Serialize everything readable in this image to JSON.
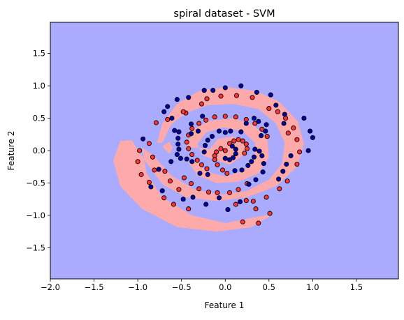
{
  "chart_data": {
    "type": "scatter",
    "title": "spiral dataset - SVM",
    "xlabel": "Feature 1",
    "ylabel": "Feature 2",
    "xlim": [
      -2.0,
      1.98
    ],
    "ylim": [
      -1.98,
      1.98
    ],
    "xticks": [
      -2.0,
      -1.5,
      -1.0,
      -0.5,
      0.0,
      0.5,
      1.0,
      1.5
    ],
    "xtick_labels": [
      "−2.0",
      "−1.5",
      "−1.0",
      "−0.5",
      "0.0",
      "0.5",
      "1.0",
      "1.5"
    ],
    "yticks": [
      -1.5,
      -1.0,
      -0.5,
      0.0,
      0.5,
      1.0,
      1.5
    ],
    "ytick_labels": [
      "−1.5",
      "−1.0",
      "−0.5",
      "0.0",
      "0.5",
      "1.0",
      "1.5"
    ],
    "grid": false,
    "colors": {
      "background_region": "#aaaaff",
      "class0_region": "#ffaaaa",
      "class0_point": "#ff3333",
      "class1_point": "#0000aa",
      "marker_edge": "#000000"
    },
    "decision_regions": {
      "outer_band": [
        [
          -1.28,
          -0.15
        ],
        [
          -1.2,
          0.15
        ],
        [
          -1.07,
          0.16
        ],
        [
          -0.92,
          -0.15
        ],
        [
          -0.72,
          -0.52
        ],
        [
          -0.45,
          -0.72
        ],
        [
          -0.1,
          -0.78
        ],
        [
          0.25,
          -0.72
        ],
        [
          0.58,
          -0.55
        ],
        [
          0.82,
          -0.25
        ],
        [
          0.9,
          0.1
        ],
        [
          0.83,
          0.45
        ],
        [
          0.62,
          0.75
        ],
        [
          0.35,
          0.92
        ],
        [
          0.0,
          0.98
        ],
        [
          -0.3,
          0.92
        ],
        [
          -0.55,
          0.72
        ],
        [
          -0.72,
          0.42
        ],
        [
          -0.78,
          0.12
        ],
        [
          -0.72,
          0.12
        ],
        [
          -0.62,
          0.4
        ],
        [
          -0.45,
          0.58
        ],
        [
          -0.2,
          0.7
        ],
        [
          0.1,
          0.72
        ],
        [
          0.38,
          0.64
        ],
        [
          0.58,
          0.42
        ],
        [
          0.68,
          0.12
        ],
        [
          0.65,
          -0.2
        ],
        [
          0.5,
          -0.45
        ],
        [
          0.25,
          -0.62
        ],
        [
          -0.05,
          -0.68
        ],
        [
          -0.35,
          -0.6
        ],
        [
          -0.62,
          -0.38
        ],
        [
          -0.82,
          -0.08
        ],
        [
          -0.95,
          0.05
        ],
        [
          -0.9,
          -0.35
        ],
        [
          -0.72,
          -0.72
        ],
        [
          -0.38,
          -1.0
        ],
        [
          0.0,
          -1.12
        ],
        [
          0.38,
          -1.02
        ],
        [
          0.55,
          -0.98
        ],
        [
          0.3,
          -1.18
        ],
        [
          -0.1,
          -1.25
        ],
        [
          -0.55,
          -1.18
        ],
        [
          -0.95,
          -0.9
        ],
        [
          -1.2,
          -0.55
        ]
      ],
      "inner_band": [
        [
          -0.45,
          0.05
        ],
        [
          -0.38,
          0.32
        ],
        [
          -0.18,
          0.46
        ],
        [
          0.08,
          0.5
        ],
        [
          0.32,
          0.4
        ],
        [
          0.48,
          0.18
        ],
        [
          0.5,
          -0.1
        ],
        [
          0.38,
          -0.35
        ],
        [
          0.15,
          -0.48
        ],
        [
          -0.1,
          -0.5
        ],
        [
          -0.32,
          -0.38
        ],
        [
          -0.42,
          -0.18
        ],
        [
          -0.32,
          -0.16
        ],
        [
          -0.22,
          -0.32
        ],
        [
          0.0,
          -0.4
        ],
        [
          0.2,
          -0.32
        ],
        [
          0.34,
          -0.12
        ],
        [
          0.34,
          0.12
        ],
        [
          0.2,
          0.3
        ],
        [
          -0.02,
          0.36
        ],
        [
          -0.22,
          0.28
        ],
        [
          -0.32,
          0.1
        ],
        [
          -0.25,
          -0.08
        ],
        [
          -0.12,
          -0.14
        ],
        [
          0.05,
          -0.22
        ],
        [
          0.2,
          -0.08
        ],
        [
          0.25,
          0.1
        ],
        [
          0.1,
          0.22
        ],
        [
          -0.08,
          0.18
        ],
        [
          -0.18,
          0.02
        ],
        [
          -0.28,
          0.04
        ]
      ],
      "small_patch": [
        [
          -0.72,
          0.06
        ],
        [
          -0.64,
          0.14
        ],
        [
          -0.6,
          0.04
        ],
        [
          -0.64,
          -0.05
        ]
      ]
    },
    "series": [
      {
        "points": [
          [
            0.0,
            0.0
          ],
          [
            0.05,
            0.11
          ],
          [
            0.1,
            0.15
          ],
          [
            0.15,
            0.17
          ],
          [
            0.2,
            0.15
          ],
          [
            0.24,
            0.1
          ],
          [
            0.25,
            0.03
          ],
          [
            0.22,
            -0.04
          ],
          [
            -0.05,
            0.03
          ],
          [
            -0.1,
            -0.02
          ],
          [
            -0.12,
            -0.08
          ],
          [
            -0.12,
            -0.14
          ],
          [
            -0.09,
            -0.22
          ],
          [
            -0.03,
            -0.3
          ],
          [
            0.02,
            -0.35
          ],
          [
            -0.21,
            -0.28
          ],
          [
            -0.27,
            -0.22
          ],
          [
            -0.32,
            -0.15
          ],
          [
            -0.38,
            -0.06
          ],
          [
            -0.42,
            0.03
          ],
          [
            -0.44,
            0.13
          ],
          [
            -0.42,
            0.24
          ],
          [
            -0.38,
            0.34
          ],
          [
            -0.3,
            0.42
          ],
          [
            -0.22,
            0.47
          ],
          [
            -0.12,
            0.52
          ],
          [
            0.0,
            0.53
          ],
          [
            0.12,
            0.52
          ],
          [
            0.24,
            0.48
          ],
          [
            0.34,
            0.42
          ],
          [
            0.42,
            0.33
          ],
          [
            0.48,
            0.22
          ],
          [
            -0.47,
            -0.42
          ],
          [
            -0.39,
            -0.51
          ],
          [
            -0.3,
            -0.59
          ],
          [
            -0.19,
            -0.64
          ],
          [
            -0.09,
            -0.65
          ],
          [
            0.05,
            -0.65
          ],
          [
            0.15,
            -0.6
          ],
          [
            0.25,
            -0.51
          ],
          [
            -0.81,
            -0.3
          ],
          [
            -0.69,
            -0.32
          ],
          [
            -0.63,
            -0.47
          ],
          [
            -0.53,
            -0.6
          ],
          [
            -0.87,
            0.11
          ],
          [
            -0.83,
            -0.1
          ],
          [
            -0.98,
            0.0
          ],
          [
            -1.0,
            -0.17
          ],
          [
            -0.96,
            -0.37
          ],
          [
            -0.87,
            -0.49
          ],
          [
            -0.7,
            -0.73
          ],
          [
            -0.59,
            -0.83
          ],
          [
            -0.42,
            -0.9
          ],
          [
            -0.79,
            0.43
          ],
          [
            -0.66,
            0.48
          ],
          [
            -0.45,
            0.58
          ],
          [
            -0.48,
            0.6
          ],
          [
            -0.27,
            0.72
          ],
          [
            -0.21,
            0.8
          ],
          [
            -0.05,
            0.84
          ],
          [
            0.13,
            0.85
          ],
          [
            0.31,
            0.82
          ],
          [
            0.5,
            0.65
          ],
          [
            0.6,
            0.6
          ],
          [
            0.69,
            0.5
          ],
          [
            0.78,
            0.35
          ],
          [
            0.72,
            0.27
          ],
          [
            0.82,
            0.17
          ],
          [
            0.85,
            -0.02
          ],
          [
            0.82,
            -0.21
          ],
          [
            0.71,
            -0.47
          ],
          [
            0.62,
            -0.59
          ],
          [
            0.47,
            -0.72
          ],
          [
            0.32,
            -0.78
          ],
          [
            0.24,
            -0.77
          ],
          [
            0.12,
            -0.83
          ],
          [
            0.35,
            -0.9
          ],
          [
            0.51,
            -0.97
          ],
          [
            0.38,
            -1.12
          ],
          [
            0.2,
            -1.1
          ]
        ]
      },
      {
        "points": [
          [
            0.0,
            -0.12
          ],
          [
            0.05,
            -0.14
          ],
          [
            0.09,
            -0.11
          ],
          [
            0.12,
            -0.05
          ],
          [
            0.12,
            0.02
          ],
          [
            0.08,
            0.07
          ],
          [
            0.34,
            0.02
          ],
          [
            0.33,
            -0.1
          ],
          [
            0.3,
            -0.17
          ],
          [
            0.26,
            -0.23
          ],
          [
            0.19,
            -0.3
          ],
          [
            0.11,
            -0.31
          ],
          [
            0.18,
            0.29
          ],
          [
            0.06,
            0.3
          ],
          [
            0.0,
            0.28
          ],
          [
            -0.07,
            0.3
          ],
          [
            -0.15,
            0.22
          ],
          [
            -0.2,
            0.16
          ],
          [
            -0.23,
            0.08
          ],
          [
            -0.24,
            -0.02
          ],
          [
            -0.31,
            0.3
          ],
          [
            -0.39,
            0.26
          ],
          [
            -0.39,
            0.41
          ],
          [
            -0.26,
            0.53
          ],
          [
            -0.29,
            -0.35
          ],
          [
            -0.2,
            -0.37
          ],
          [
            -0.38,
            -0.17
          ],
          [
            -0.44,
            -0.13
          ],
          [
            -0.51,
            -0.12
          ],
          [
            -0.55,
            -0.06
          ],
          [
            -0.53,
            0.02
          ],
          [
            -0.54,
            0.1
          ],
          [
            -0.54,
            0.19
          ],
          [
            -0.53,
            0.29
          ],
          [
            0.39,
            -0.01
          ],
          [
            0.42,
            -0.08
          ],
          [
            0.44,
            -0.2
          ],
          [
            0.43,
            -0.33
          ],
          [
            0.35,
            -0.45
          ],
          [
            0.27,
            -0.52
          ],
          [
            0.24,
            0.42
          ],
          [
            0.33,
            0.5
          ],
          [
            0.38,
            0.45
          ],
          [
            0.47,
            0.4
          ],
          [
            0.46,
            0.3
          ],
          [
            0.41,
            0.23
          ],
          [
            -0.58,
            0.31
          ],
          [
            -0.61,
            0.5
          ],
          [
            -0.7,
            0.6
          ],
          [
            -0.66,
            0.68
          ],
          [
            -0.55,
            0.79
          ],
          [
            -0.42,
            0.82
          ],
          [
            -0.24,
            0.93
          ],
          [
            -0.14,
            0.93
          ],
          [
            0.0,
            0.97
          ],
          [
            0.18,
            1.0
          ],
          [
            0.36,
            0.9
          ],
          [
            0.52,
            0.86
          ],
          [
            0.58,
            0.7
          ],
          [
            0.68,
            0.56
          ],
          [
            0.67,
            0.42
          ],
          [
            0.75,
            -0.08
          ],
          [
            0.7,
            -0.21
          ],
          [
            0.66,
            -0.32
          ],
          [
            0.61,
            -0.44
          ],
          [
            -0.62,
            -0.17
          ],
          [
            -0.76,
            -0.29
          ],
          [
            -0.85,
            -0.56
          ],
          [
            -0.72,
            -0.62
          ],
          [
            -0.94,
            0.18
          ],
          [
            -0.48,
            -0.75
          ],
          [
            -0.37,
            -0.72
          ],
          [
            -0.22,
            -0.83
          ],
          [
            -0.07,
            -0.73
          ],
          [
            0.03,
            -0.91
          ],
          [
            0.17,
            -0.79
          ],
          [
            0.9,
            0.5
          ],
          [
            0.97,
            0.3
          ],
          [
            1.0,
            0.2
          ],
          [
            0.95,
            0.0
          ]
        ]
      }
    ]
  }
}
